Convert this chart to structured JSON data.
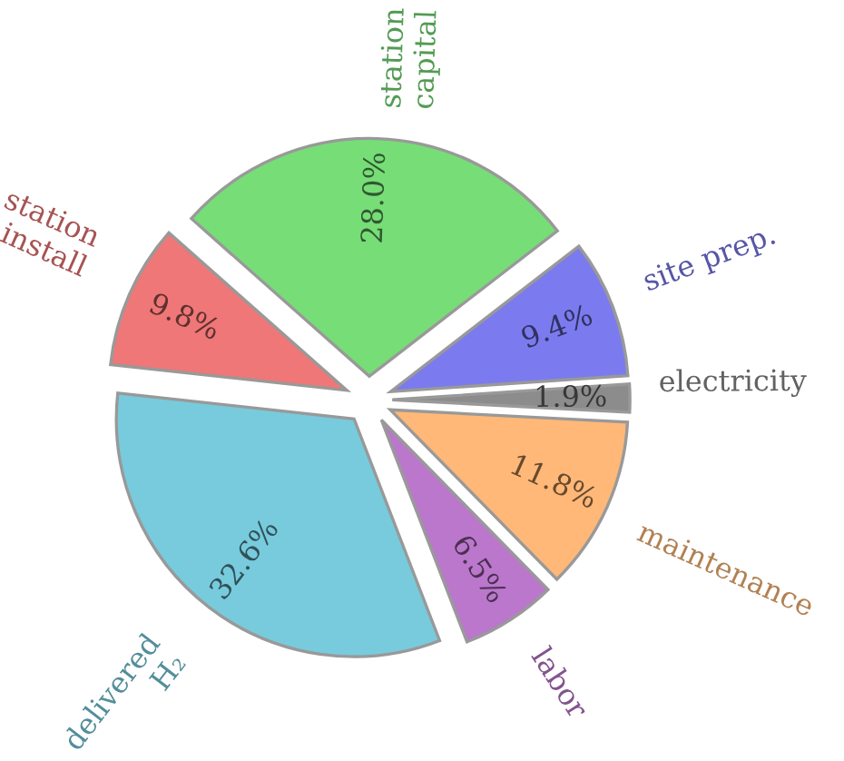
{
  "chart_data": {
    "type": "pie",
    "categories": [
      "electricity",
      "site prep.",
      "station\ncapital",
      "station\ninstall",
      "delivered\nH₂",
      "labor",
      "maintenance"
    ],
    "values": [
      1.9,
      9.4,
      28.0,
      9.8,
      32.6,
      6.5,
      11.8
    ],
    "colors": [
      "#8c8c8c",
      "#7b7bef",
      "#77dd77",
      "#ef7777",
      "#77cbdc",
      "#bb77cc",
      "#ffb877"
    ],
    "value_labels": [
      "1.9%",
      "9.4%",
      "28.0%",
      "9.8%",
      "32.6%",
      "6.5%",
      "11.8%"
    ]
  }
}
